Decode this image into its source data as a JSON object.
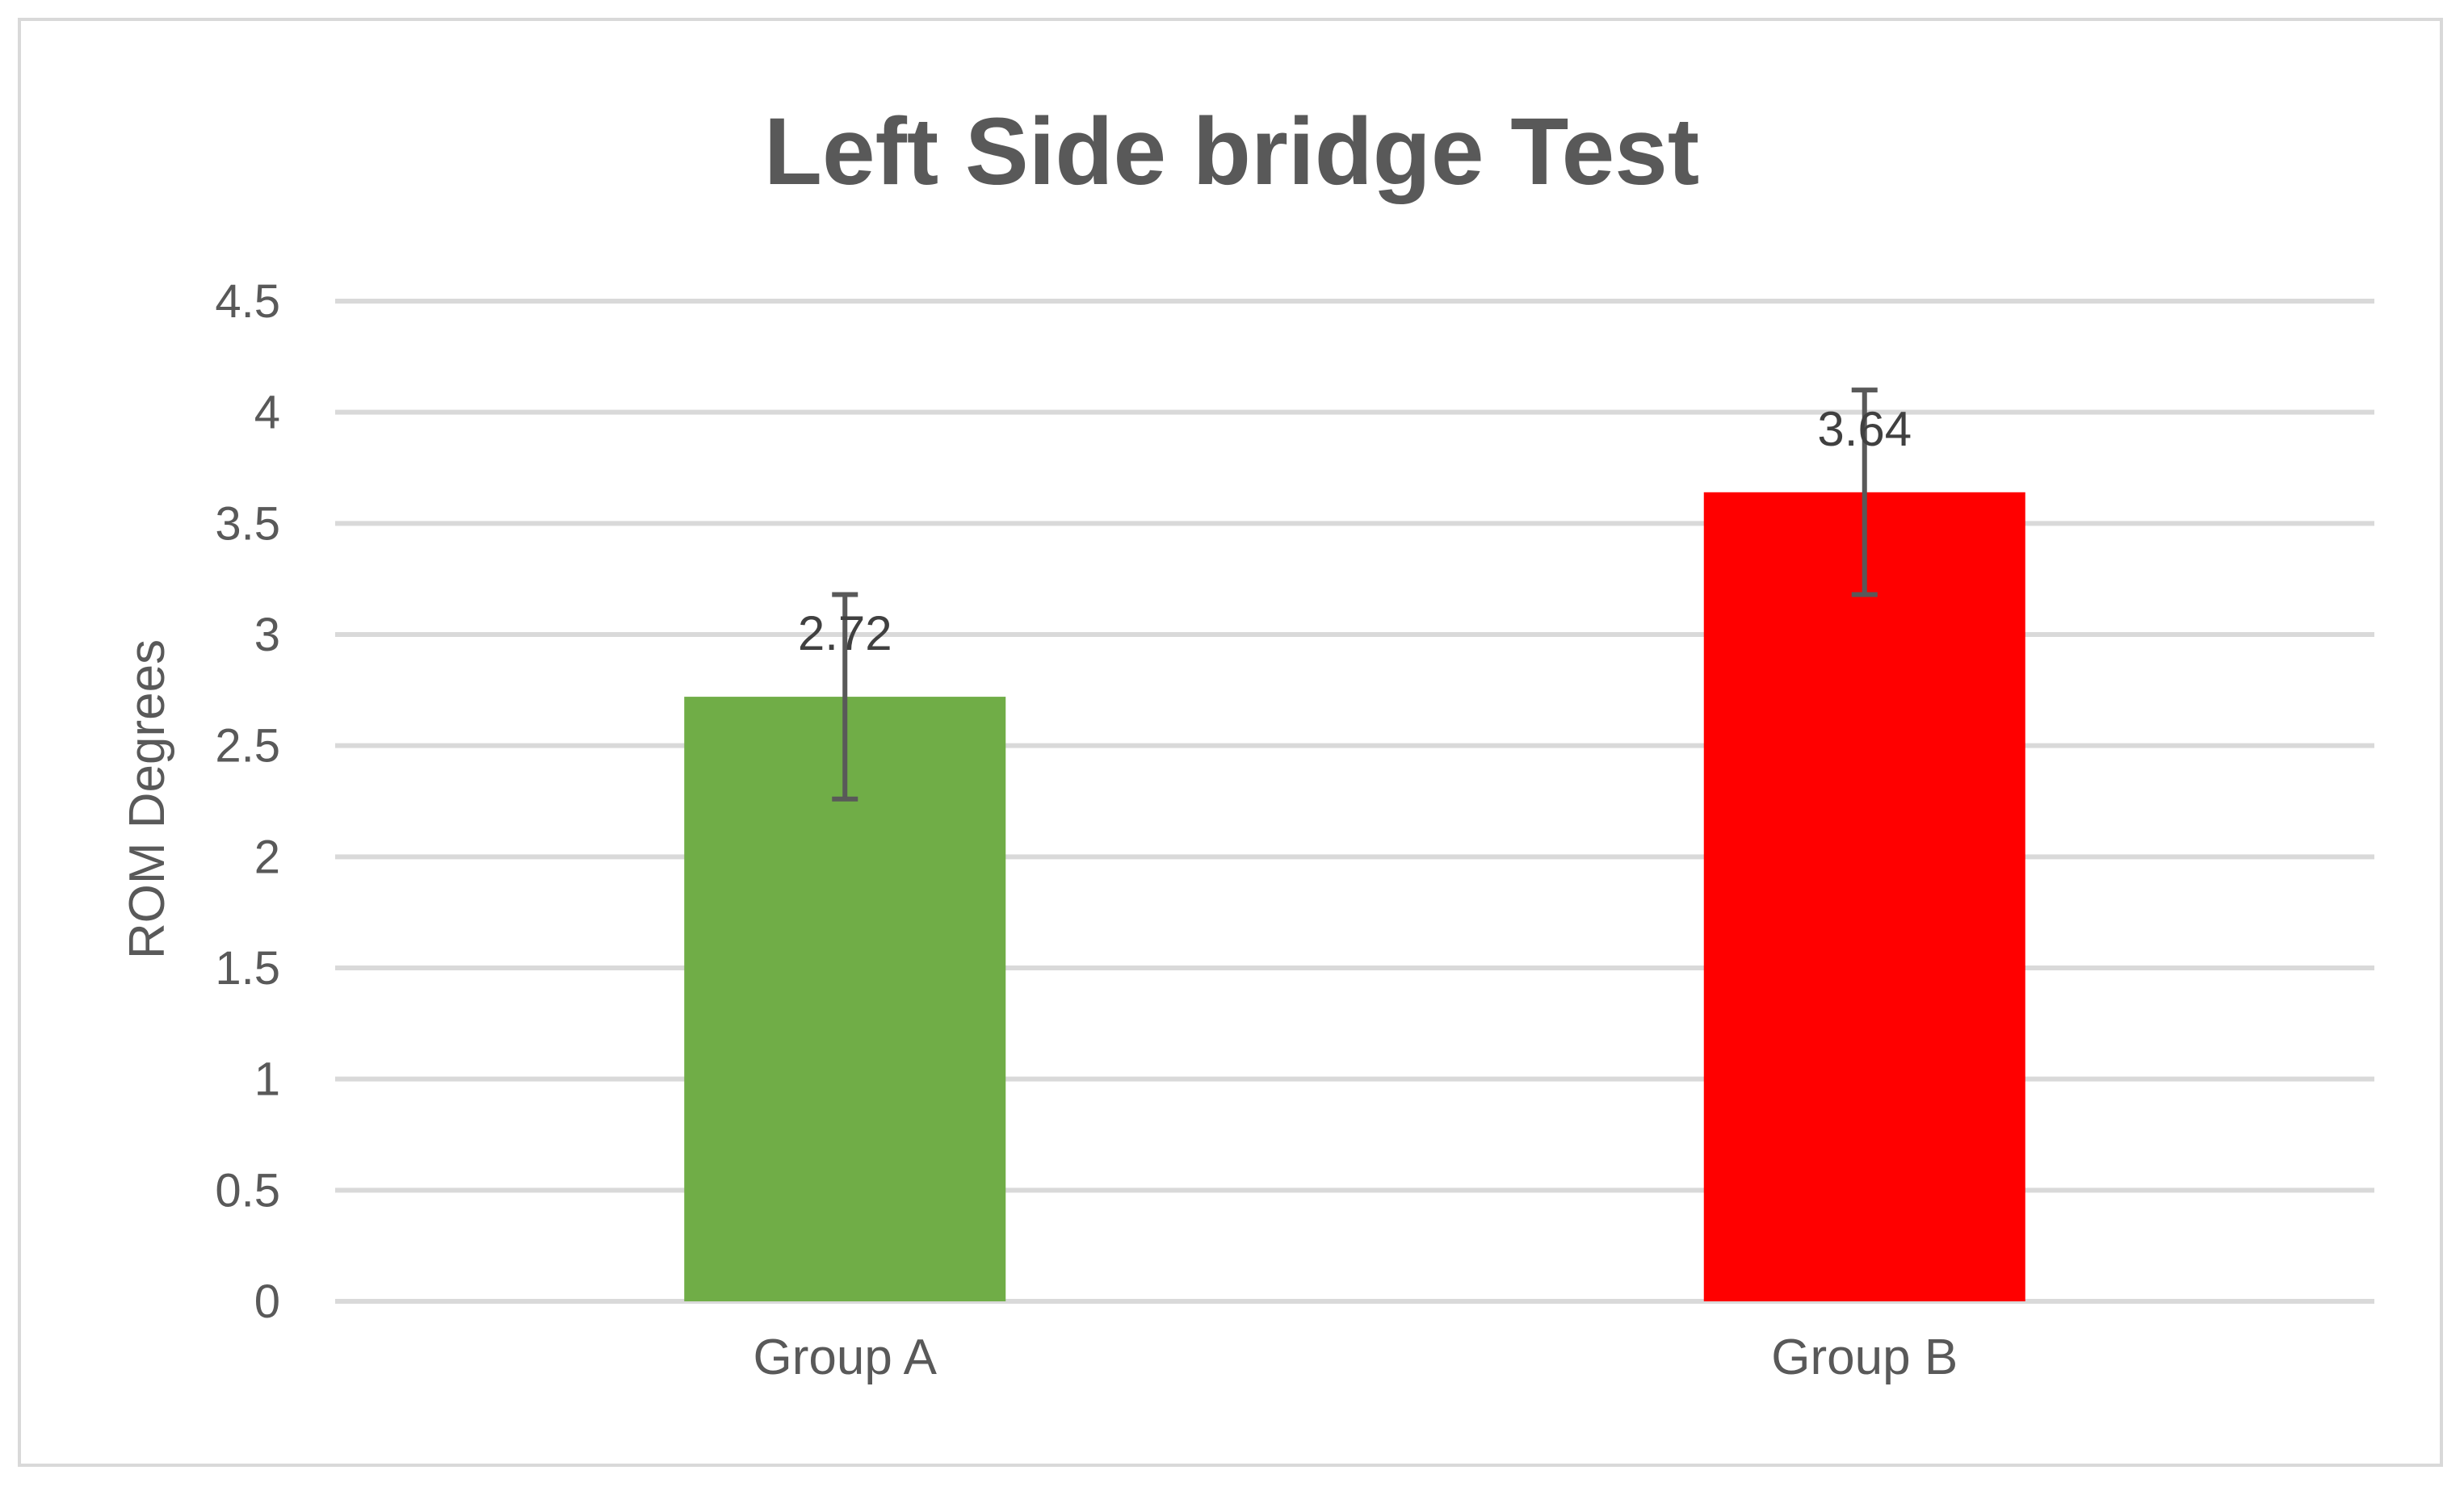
{
  "chart_data": {
    "type": "bar",
    "title": "Left Side bridge Test",
    "xlabel": "",
    "ylabel": "ROM Degrees",
    "categories": [
      "Group A",
      "Group B"
    ],
    "values": [
      2.72,
      3.64
    ],
    "data_labels": [
      "2.72",
      "3.64"
    ],
    "error_bars": [
      {
        "low": 2.26,
        "high": 3.18
      },
      {
        "low": 3.18,
        "high": 4.1
      }
    ],
    "colors": [
      "#70ad47",
      "#ff0000"
    ],
    "ylim": [
      0,
      4.5
    ],
    "ytick_values": [
      0,
      0.5,
      1,
      1.5,
      2,
      2.5,
      3,
      3.5,
      4,
      4.5
    ],
    "ytick_labels": [
      "0",
      "0.5",
      "1",
      "1.5",
      "2",
      "2.5",
      "3",
      "3.5",
      "4",
      "4.5"
    ],
    "grid": true,
    "legend": "none"
  }
}
